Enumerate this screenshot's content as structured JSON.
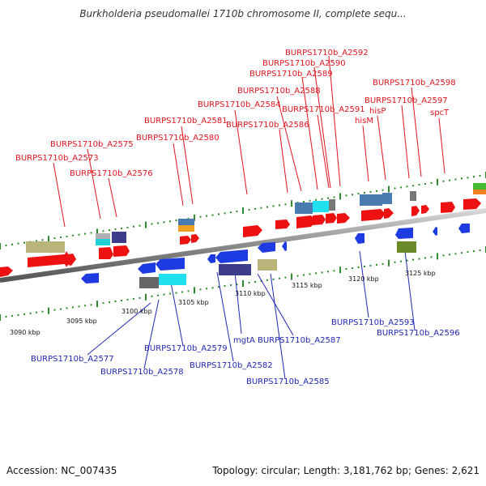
{
  "title": "Burkholderia pseudomallei 1710b chromosome II, complete sequ...",
  "footer": {
    "accession": "Accession: NC_007435",
    "summary": "Topology: circular; Length: 3,181,762 bp; Genes: 2,621"
  },
  "colors": {
    "top_label": "#e0141e",
    "bottom_label": "#1e28b4",
    "backbone": "#8a8a8a",
    "tick": "#2d8a2d",
    "red_gene": "#ee1111",
    "blue_gene": "#1d3be0"
  },
  "kbp_ticks": [
    {
      "label": "3090 kbp"
    },
    {
      "label": "3095 kbp"
    },
    {
      "label": "3100 kbp"
    },
    {
      "label": "3105 kbp"
    },
    {
      "label": "3110 kbp"
    },
    {
      "label": "3115 kbp"
    },
    {
      "label": "3120 kbp"
    },
    {
      "label": "3125 kbp"
    }
  ],
  "top_labels": [
    {
      "text": "BURPS1710b_A2592"
    },
    {
      "text": "BURPS1710b_A2590"
    },
    {
      "text": "BURPS1710b_A2589"
    },
    {
      "text": "BURPS1710b_A2588"
    },
    {
      "text": "BURPS1710b_A2598"
    },
    {
      "text": "BURPS1710b_A2597"
    },
    {
      "text": "BURPS1710b_A2584"
    },
    {
      "text": "BURPS1710b_A2591"
    },
    {
      "text": "hisP"
    },
    {
      "text": "spcT"
    },
    {
      "text": "BURPS1710b_A2581"
    },
    {
      "text": "BURPS1710b_A2586"
    },
    {
      "text": "hisM"
    },
    {
      "text": "BURPS1710b_A2580"
    },
    {
      "text": "BURPS1710b_A2575"
    },
    {
      "text": "BURPS1710b_A2573"
    },
    {
      "text": "BURPS1710b_A2576"
    }
  ],
  "bottom_labels": [
    {
      "text": "BURPS1710b_A2593"
    },
    {
      "text": "BURPS1710b_A2596"
    },
    {
      "text": "mgtA"
    },
    {
      "text": "BURPS1710b_A2587"
    },
    {
      "text": "BURPS1710b_A2579"
    },
    {
      "text": "BURPS1710b_A2577"
    },
    {
      "text": "BURPS1710b_A2582"
    },
    {
      "text": "BURPS1710b_A2578"
    },
    {
      "text": "BURPS1710b_A2585"
    }
  ]
}
